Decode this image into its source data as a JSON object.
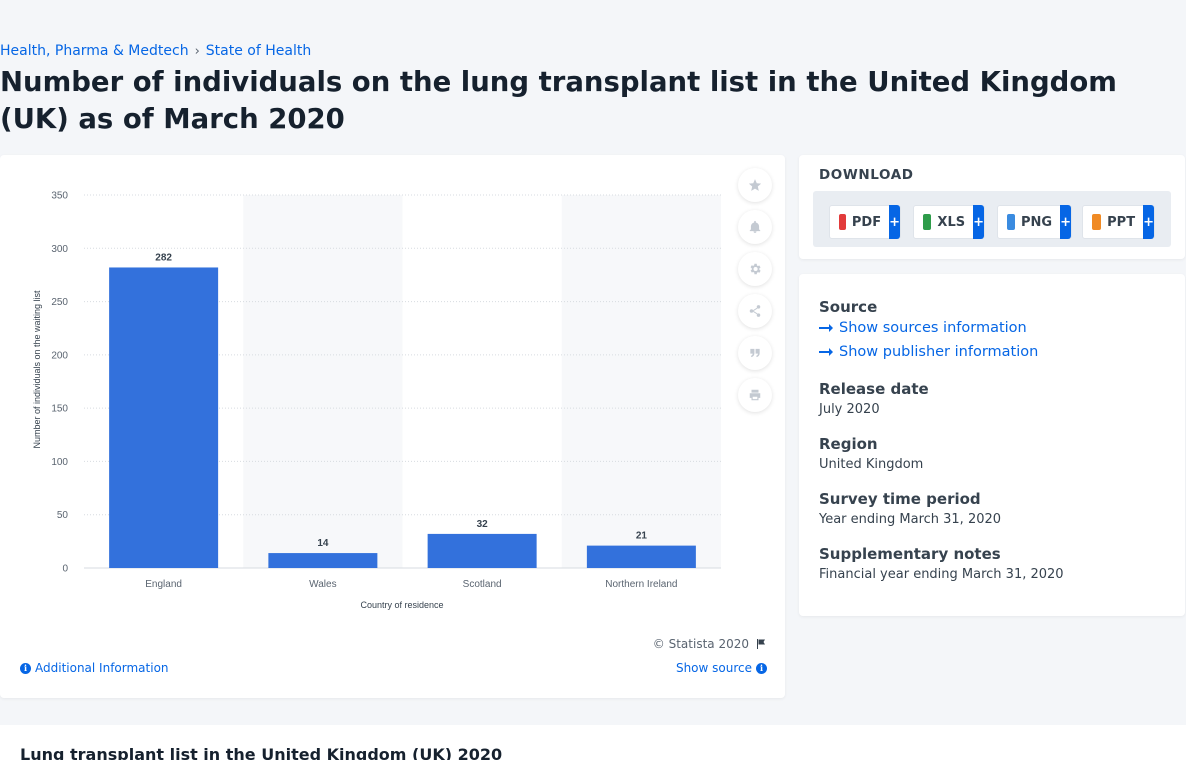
{
  "breadcrumb": {
    "items": [
      "Health, Pharma & Medtech",
      "State of Health"
    ],
    "separator": "›"
  },
  "title": "Number of individuals on the lung transplant list in the United Kingdom (UK) as of March 2020",
  "chart": {
    "copyright": "© Statista 2020",
    "additional_info": "Additional Information",
    "show_source": "Show source"
  },
  "chart_data": {
    "type": "bar",
    "categories": [
      "England",
      "Wales",
      "Scotland",
      "Northern Ireland"
    ],
    "values": [
      282,
      14,
      32,
      21
    ],
    "data_labels": [
      "282",
      "14",
      "32",
      "21"
    ],
    "xlabel": "Country of residence",
    "ylabel": "Number of individuals on the waiting list",
    "ylim": [
      0,
      350
    ],
    "yticks": [
      0,
      50,
      100,
      150,
      200,
      250,
      300,
      350
    ],
    "ytick_labels": [
      "0",
      "50",
      "100",
      "150",
      "200",
      "250",
      "300",
      "350"
    ],
    "grid": true,
    "bar_color": "#3371dc"
  },
  "tools": [
    "star-icon",
    "bell-icon",
    "gear-icon",
    "share-icon",
    "quote-icon",
    "print-icon"
  ],
  "download": {
    "title": "DOWNLOAD",
    "buttons": [
      {
        "label": "PDF",
        "color": "#e23b3b"
      },
      {
        "label": "XLS",
        "color": "#2e9c4a"
      },
      {
        "label": "PNG",
        "color": "#3a8be0"
      },
      {
        "label": "PPT",
        "color": "#f08a24"
      }
    ],
    "plus": "+"
  },
  "info": {
    "source_heading": "Source",
    "show_sources": "Show sources information",
    "show_publisher": "Show publisher information",
    "release_heading": "Release date",
    "release_value": "July 2020",
    "region_heading": "Region",
    "region_value": "United Kingdom",
    "survey_heading": "Survey time period",
    "survey_value": "Year ending March 31, 2020",
    "notes_heading": "Supplementary notes",
    "notes_value": "Financial year ending March 31, 2020"
  },
  "bottom": {
    "title": "Lung transplant list in the United Kingdom (UK) 2020"
  }
}
